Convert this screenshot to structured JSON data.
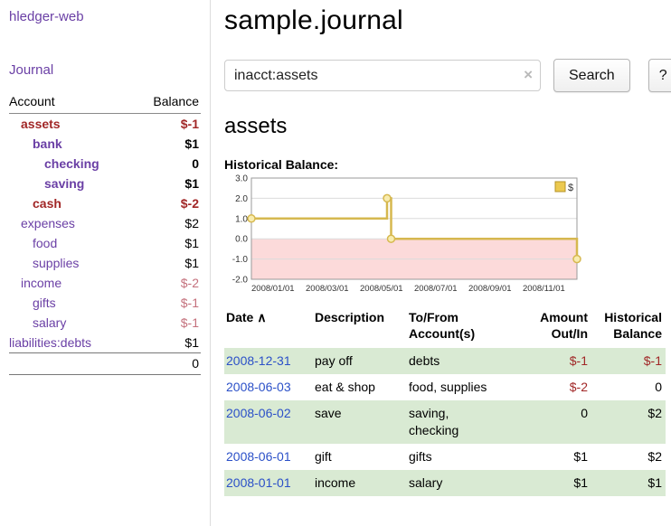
{
  "app_title": "hledger-web",
  "sidebar": {
    "journal_link": "Journal",
    "accounts": {
      "header_account": "Account",
      "header_balance": "Balance",
      "rows": [
        {
          "account": "assets",
          "indent": 1,
          "bold": true,
          "negative": true,
          "balance": "$-1"
        },
        {
          "account": "bank",
          "indent": 2,
          "bold": true,
          "negative": false,
          "balance": "$1"
        },
        {
          "account": "checking",
          "indent": 3,
          "bold": true,
          "negative": false,
          "balance": "0"
        },
        {
          "account": "saving",
          "indent": 3,
          "bold": true,
          "negative": false,
          "balance": "$1"
        },
        {
          "account": "cash",
          "indent": 2,
          "bold": true,
          "negative": true,
          "balance": "$-2"
        },
        {
          "account": "expenses",
          "indent": 1,
          "bold": false,
          "negative": false,
          "balance": "$2"
        },
        {
          "account": "food",
          "indent": 2,
          "bold": false,
          "negative": false,
          "balance": "$1"
        },
        {
          "account": "supplies",
          "indent": 2,
          "bold": false,
          "negative": false,
          "balance": "$1"
        },
        {
          "account": "income",
          "indent": 1,
          "bold": false,
          "negative": true,
          "balance": "$-2"
        },
        {
          "account": "gifts",
          "indent": 2,
          "bold": false,
          "negative": true,
          "balance": "$-1"
        },
        {
          "account": "salary",
          "indent": 2,
          "bold": false,
          "negative": true,
          "balance": "$-1"
        },
        {
          "account": "liabilities:debts",
          "indent": 0,
          "bold": false,
          "negative": false,
          "balance": "$1"
        }
      ],
      "total": "0"
    }
  },
  "main": {
    "title": "sample.journal",
    "search": {
      "value": "inacct:assets",
      "clear_icon": "×",
      "search_button": "Search",
      "help_button": "?"
    },
    "account_heading": "assets"
  },
  "chart_data": {
    "type": "line",
    "title": "Historical Balance:",
    "xlabel": "",
    "ylabel": "",
    "ylim": [
      -2.0,
      3.0
    ],
    "yticks": [
      3.0,
      2.0,
      1.0,
      0.0,
      -1.0,
      -2.0
    ],
    "xlim": [
      0,
      12
    ],
    "xticks": [
      {
        "pos": 0,
        "label": "2008/01/01"
      },
      {
        "pos": 2,
        "label": "2008/03/01"
      },
      {
        "pos": 4,
        "label": "2008/05/01"
      },
      {
        "pos": 6,
        "label": "2008/07/01"
      },
      {
        "pos": 8,
        "label": "2008/09/01"
      },
      {
        "pos": 10,
        "label": "2008/11/01"
      }
    ],
    "grid": true,
    "legend": {
      "label": "$",
      "swatch_color": "#ecc94f",
      "swatch_border": "#b49327",
      "position": "top-right"
    },
    "negative_fill": "#fcdada",
    "series": [
      {
        "name": "$",
        "color": "#d6b84f",
        "marker_fill": "#f8ecae",
        "points": [
          [
            0,
            1
          ],
          [
            5,
            1
          ],
          [
            5,
            2
          ],
          [
            5.15,
            2
          ],
          [
            5.15,
            0
          ],
          [
            12,
            0
          ],
          [
            12,
            -1
          ]
        ],
        "markers": [
          [
            0,
            1
          ],
          [
            5,
            2
          ],
          [
            5.15,
            0
          ],
          [
            12,
            -1
          ]
        ]
      }
    ]
  },
  "register": {
    "headers": {
      "date": "Date",
      "sort_icon": "∧",
      "description": "Description",
      "accounts_line1": "To/From",
      "accounts_line2": "Account(s)",
      "amount_line1": "Amount",
      "amount_line2": "Out/In",
      "balance_line1": "Historical",
      "balance_line2": "Balance"
    },
    "rows": [
      {
        "date": "2008-12-31",
        "description": "pay off",
        "accounts": "debts",
        "amount": "$-1",
        "amount_negative": true,
        "balance": "$-1",
        "balance_negative": true
      },
      {
        "date": "2008-06-03",
        "description": "eat & shop",
        "accounts": "food, supplies",
        "amount": "$-2",
        "amount_negative": true,
        "balance": "0",
        "balance_negative": false
      },
      {
        "date": "2008-06-02",
        "description": "save",
        "accounts": "saving,\nchecking",
        "amount": "0",
        "amount_negative": false,
        "balance": "$2",
        "balance_negative": false
      },
      {
        "date": "2008-06-01",
        "description": "gift",
        "accounts": "gifts",
        "amount": "$1",
        "amount_negative": false,
        "balance": "$2",
        "balance_negative": false
      },
      {
        "date": "2008-01-01",
        "description": "income",
        "accounts": "salary",
        "amount": "$1",
        "amount_negative": false,
        "balance": "$1",
        "balance_negative": false
      }
    ]
  }
}
